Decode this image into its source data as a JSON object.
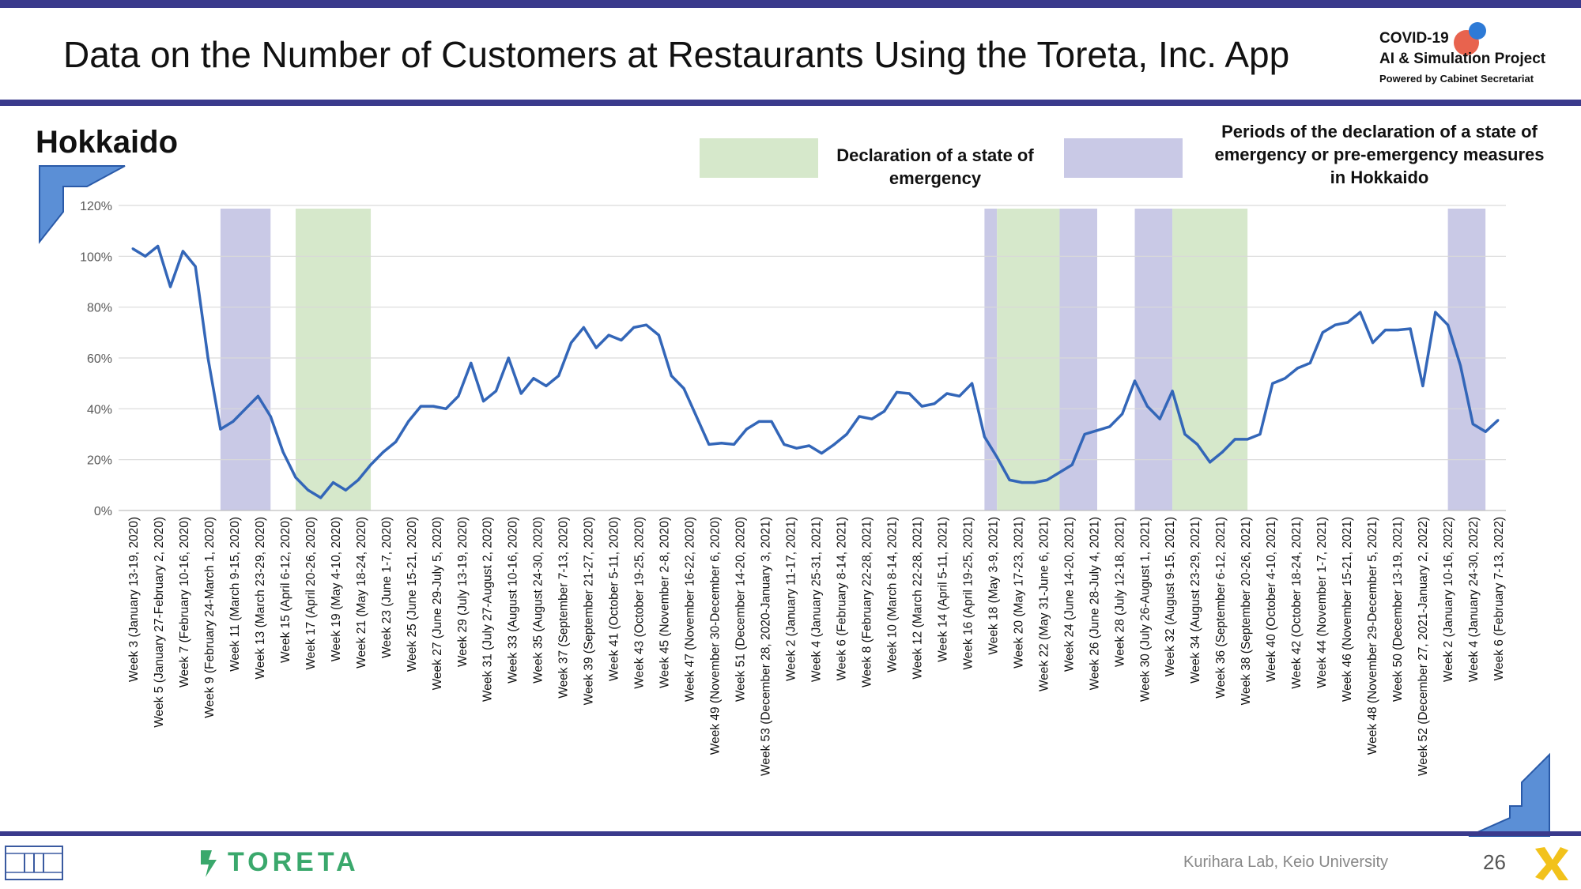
{
  "header": {
    "title": "Data on the Number of Customers at Restaurants Using the Toreta, Inc. App",
    "logo_line1": "COVID-19",
    "logo_line2": "AI & Simulation Project",
    "logo_line3": "Powered by Cabinet Secretariat"
  },
  "region": "Hokkaido",
  "legend": {
    "green_label": "Declaration of a state of emergency",
    "purple_label": "Periods of the declaration of a state of emergency or pre-emergency measures in Hokkaido"
  },
  "footer": {
    "brand": "TORETA",
    "lab": "Kurihara Lab, Keio University",
    "page": "26"
  },
  "colors": {
    "line": "#3366b8",
    "green_band": "#d6e8cb",
    "purple_band": "#c9c9e6",
    "frame": "#3a3a8c"
  },
  "chart_data": {
    "type": "line",
    "ylim": [
      0,
      120
    ],
    "ytick_labels": [
      "0%",
      "20%",
      "40%",
      "60%",
      "80%",
      "100%",
      "120%"
    ],
    "grid": true,
    "x_tick_labels": [
      "Week 3 (January 13-19, 2020)",
      "Week 5 (January 27-February 2, 2020)",
      "Week 7 (February 10-16, 2020)",
      "Week 9 (February 24-March 1, 2020)",
      "Week 11 (March 9-15, 2020)",
      "Week 13 (March 23-29, 2020)",
      "Week 15 (April 6-12, 2020)",
      "Week 17 (April 20-26, 2020)",
      "Week 19 (May 4-10, 2020)",
      "Week 21 (May 18-24, 2020)",
      "Week 23 (June 1-7, 2020)",
      "Week 25 (June 15-21, 2020)",
      "Week 27 (June 29-July 5, 2020)",
      "Week 29 (July 13-19, 2020)",
      "Week 31 (July 27-August 2, 2020)",
      "Week 33 (August 10-16, 2020)",
      "Week 35 (August 24-30, 2020)",
      "Week 37 (September 7-13, 2020)",
      "Week 39 (September 21-27, 2020)",
      "Week 41 (October 5-11, 2020)",
      "Week 43 (October 19-25, 2020)",
      "Week 45 (November 2-8, 2020)",
      "Week 47 (November 16-22, 2020)",
      "Week 49 (November 30-December 6, 2020)",
      "Week 51 (December 14-20, 2020)",
      "Week 53 (December 28, 2020-January 3, 2021)",
      "Week 2 (January 11-17, 2021)",
      "Week 4 (January 25-31, 2021)",
      "Week 6 (February 8-14, 2021)",
      "Week 8 (February 22-28, 2021)",
      "Week 10 (March 8-14, 2021)",
      "Week 12 (March 22-28, 2021)",
      "Week 14 (April 5-11, 2021)",
      "Week 16 (April 19-25, 2021)",
      "Week 18 (May 3-9, 2021)",
      "Week 20 (May 17-23, 2021)",
      "Week 22 (May 31-June 6, 2021)",
      "Week 24 (June 14-20, 2021)",
      "Week 26 (June 28-July 4, 2021)",
      "Week 28 (July 12-18, 2021)",
      "Week 30 (July 26-August 1, 2021)",
      "Week 32 (August 9-15, 2021)",
      "Week 34 (August 23-29, 2021)",
      "Week 36 (September 6-12, 2021)",
      "Week 38 (September 20-26, 2021)",
      "Week 40 (October 4-10, 2021)",
      "Week 42 (October 18-24, 2021)",
      "Week 44 (November 1-7, 2021)",
      "Week 46 (November 15-21, 2021)",
      "Week 48 (November 29-December 5, 2021)",
      "Week 50 (December 13-19, 2021)",
      "Week 52 (December 27, 2021-January 2, 2022)",
      "Week 2 (January 10-16, 2022)",
      "Week 4 (January 24-30, 2022)",
      "Week 6 (February 7-13, 2022)"
    ],
    "series": [
      {
        "values": [
          103,
          100,
          104,
          88,
          102,
          96,
          60,
          32,
          35,
          40,
          45,
          37,
          23,
          13,
          8,
          5,
          11,
          8,
          12,
          18,
          23,
          27,
          35,
          41,
          41,
          40,
          45,
          58,
          43,
          47,
          60,
          46,
          52,
          49,
          53,
          66,
          72,
          64,
          69,
          67,
          72,
          73,
          69,
          53,
          48,
          37,
          26,
          26.5,
          26,
          32,
          35,
          35,
          26,
          24.5,
          25.5,
          22.5,
          26,
          30,
          37,
          36,
          39,
          46.5,
          46,
          41,
          42,
          46,
          45,
          50,
          29,
          21,
          12,
          11,
          11,
          12,
          15,
          18,
          30,
          31.5,
          33,
          38,
          51,
          41,
          36,
          47,
          30,
          26,
          19,
          23,
          28,
          28,
          30,
          50,
          52,
          56,
          58,
          70,
          73,
          74,
          78,
          66,
          71,
          71,
          71.5,
          49,
          78,
          73,
          57,
          34,
          31,
          35.5
        ]
      }
    ],
    "bands": [
      {
        "color": "purple",
        "start": 7,
        "end": 11
      },
      {
        "color": "green",
        "start": 13,
        "end": 19
      },
      {
        "color": "purple",
        "start": 68,
        "end": 69
      },
      {
        "color": "green",
        "start": 69,
        "end": 74
      },
      {
        "color": "purple",
        "start": 74,
        "end": 77
      },
      {
        "color": "purple",
        "start": 80,
        "end": 83
      },
      {
        "color": "green",
        "start": 83,
        "end": 89
      },
      {
        "color": "purple",
        "start": 105,
        "end": 108
      }
    ]
  }
}
